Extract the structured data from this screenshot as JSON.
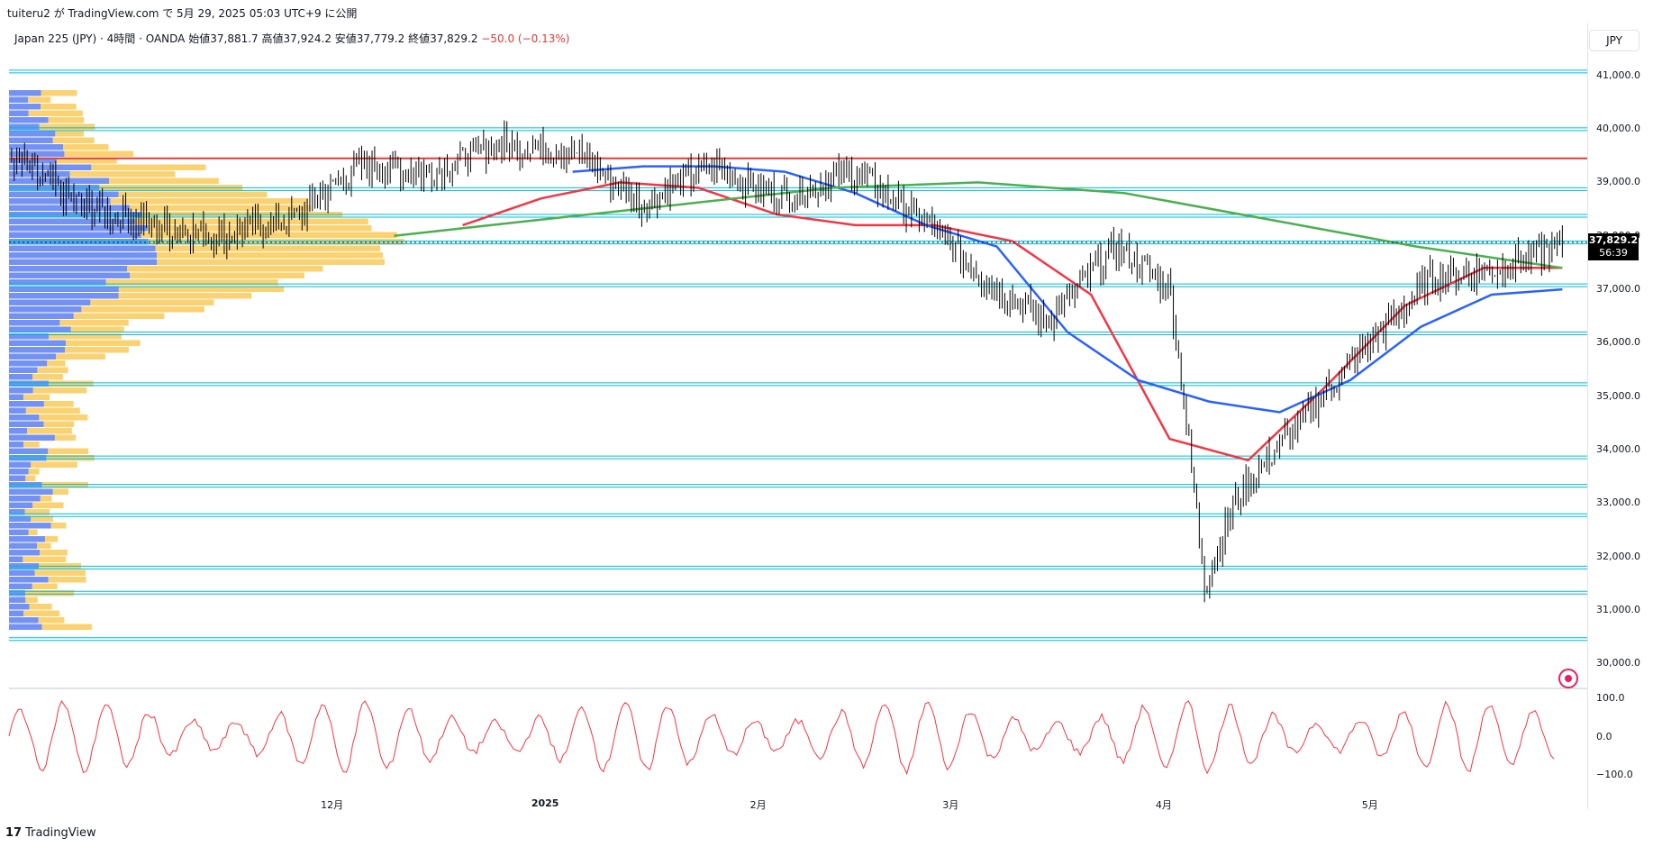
{
  "header": {
    "publish_line": "tuiteru2 が TradingView.com で 5月 29, 2025 05:03 UTC+9 に公開",
    "symbol_line": "Japan 225 (JPY) · 4時間 · OANDA",
    "ohlc": {
      "open_label": "始値",
      "open": "37,881.7",
      "high_label": "高値",
      "high": "37,924.2",
      "low_label": "安値",
      "low": "37,779.2",
      "close_label": "終値",
      "close": "37,829.2",
      "change": "−50.0 (−0.13%)"
    },
    "currency_button": "JPY"
  },
  "price_tag": {
    "price": "37,829.2",
    "countdown": "56:39"
  },
  "footer": {
    "brand": "TradingView",
    "logo": "tradingview-logo-icon"
  },
  "colors": {
    "candle": "#000000",
    "ma_red": "#f23645",
    "ma_blue": "#2962ff",
    "ma_green": "#4caf50",
    "ma_purple": "#9c27b0",
    "hline_cyan": "#00bcd4",
    "resistance_red": "#e53935",
    "vp_blue": "#5b7ff2",
    "vp_yellow": "#f9c74f",
    "osc_red": "#f23645",
    "fill_blue": "#c5d3f5",
    "fill_red": "#f9c9cc"
  },
  "chart_data": {
    "type": "candlestick",
    "timeframe": "4時間",
    "y_axis": {
      "ylim": [
        29600,
        41300
      ],
      "ticks": [
        30000,
        31000,
        32000,
        33000,
        34000,
        35000,
        36000,
        37000,
        38000,
        39000,
        40000,
        41000
      ],
      "tick_labels": [
        "30,000.0",
        "31,000.0",
        "32,000.0",
        "33,000.0",
        "34,000.0",
        "35,000.0",
        "36,000.0",
        "37,000.0",
        "38,000.0",
        "39,000.0",
        "40,000.0",
        "41,000.0"
      ]
    },
    "x_axis": {
      "tick_labels": [
        "12月",
        "2025",
        "2月",
        "3月",
        "4月",
        "5月"
      ],
      "tick_dates": [
        "2024-12-01",
        "2025-01-01",
        "2025-02-01",
        "2025-03-01",
        "2025-04-01",
        "2025-05-01"
      ],
      "range": [
        "2024-10-15",
        "2025-05-30"
      ]
    },
    "horizontal_lines_cyan": [
      41100,
      40020,
      38900,
      38400,
      37900,
      37100,
      36200,
      35250,
      33880,
      33350,
      32800,
      31820,
      31350,
      30480
    ],
    "horizontal_line_red": 39450,
    "price_path": {
      "dates": [
        "2024-10-15",
        "2024-10-25",
        "2024-11-05",
        "2024-11-15",
        "2024-11-25",
        "2024-12-05",
        "2024-12-15",
        "2024-12-25",
        "2025-01-05",
        "2025-01-15",
        "2025-01-25",
        "2025-02-05",
        "2025-02-15",
        "2025-02-25",
        "2025-03-05",
        "2025-03-15",
        "2025-03-25",
        "2025-04-02",
        "2025-04-07",
        "2025-04-12",
        "2025-04-20",
        "2025-05-01",
        "2025-05-10",
        "2025-05-20",
        "2025-05-29"
      ],
      "close": [
        39500,
        38600,
        38200,
        38000,
        38300,
        39300,
        39200,
        39700,
        39600,
        38600,
        39300,
        38700,
        39200,
        38300,
        37300,
        36400,
        37800,
        37000,
        31500,
        33200,
        34400,
        36000,
        37200,
        37400,
        37829
      ]
    },
    "ma_red": [
      38200,
      38700,
      39000,
      38900,
      38400,
      38200,
      38200,
      37900,
      36900,
      34200,
      33800,
      35200,
      36700,
      37400,
      37400
    ],
    "ma_blue": [
      39200,
      39300,
      39300,
      39200,
      38800,
      38200,
      37800,
      36200,
      35300,
      34900,
      34700,
      35300,
      36300,
      36900,
      37000
    ],
    "ma_green": [
      38000,
      38300,
      38600,
      38900,
      39000,
      38800,
      38300,
      37800,
      37400
    ],
    "oscillator": {
      "name": "oscillator",
      "ticks": [
        100,
        0,
        -100
      ],
      "tick_labels": [
        "100.0",
        "0.0",
        "−100.0"
      ]
    },
    "volume_profile": {
      "rows": 80
    }
  }
}
